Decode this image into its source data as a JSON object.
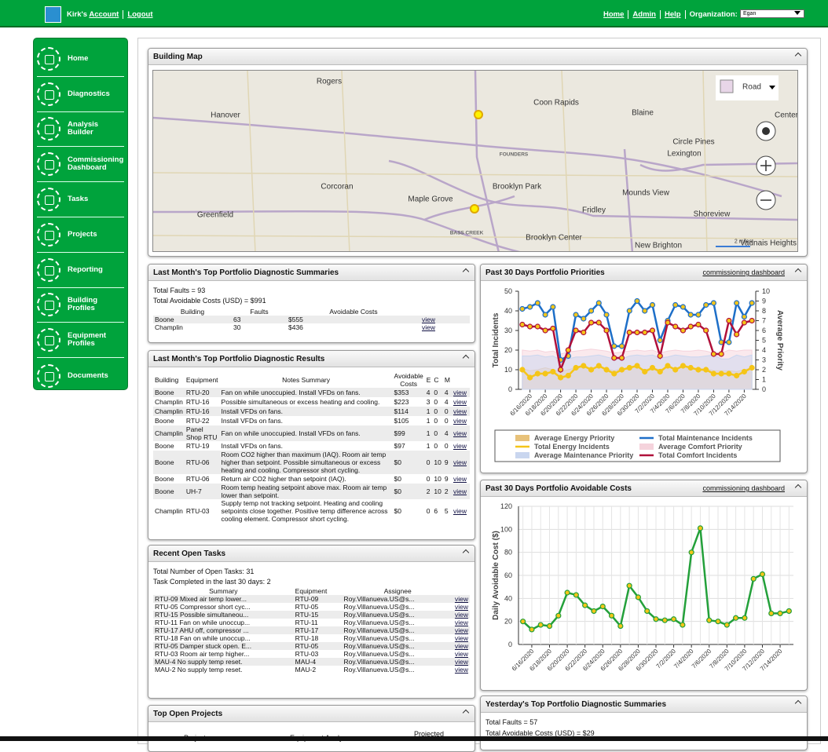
{
  "header": {
    "user": "Kirk's",
    "account": "Account",
    "logout": "Logout",
    "links": [
      "Home",
      "Admin",
      "Help"
    ],
    "org_label": "Organization:",
    "org": "Egan"
  },
  "sidebar": [
    "Home",
    "Diagnostics",
    "Analysis Builder",
    "Commissioning Dashboard",
    "Tasks",
    "Projects",
    "Reporting",
    "Building Profiles",
    "Equipment Profiles",
    "Documents"
  ],
  "map": {
    "title": "Building Map",
    "layer": "Road",
    "scale": "2 miles",
    "labels": [
      "Rogers",
      "Hanover",
      "Coon Rapids",
      "Blaine",
      "Center",
      "Circle Pines",
      "Lexington",
      "FOUNDERS",
      "Corcoran",
      "Maple Grove",
      "Brooklyn Park",
      "Mounds View",
      "Greenfield",
      "Fridley",
      "Shoreview",
      "BASS CREEK",
      "Brooklyn Center",
      "New Brighton",
      "Vadnais Heights"
    ]
  },
  "summaries": {
    "title": "Last Month's Top Portfolio Diagnostic Summaries",
    "faults": "Total Faults = 93",
    "costs": "Total Avoidable Costs (USD) = $991",
    "columns": [
      "Building",
      "Faults",
      "Avoidable Costs"
    ],
    "rows": [
      [
        "Boone",
        63,
        "$555",
        "view"
      ],
      [
        "Champlin",
        30,
        "$436",
        "view"
      ]
    ]
  },
  "results": {
    "title": "Last Month's Top Portfolio Diagnostic Results",
    "columns": [
      "Building",
      "Equipment",
      "Notes Summary",
      "Avoidable Costs",
      "E",
      "C",
      "M"
    ],
    "rows": [
      [
        "Boone",
        "RTU-20",
        "Fan on while unoccupied. Install VFDs on fans.",
        "$353",
        4,
        0,
        4,
        "view"
      ],
      [
        "Champlin",
        "RTU-16",
        "Possible simultaneous or excess heating and cooling.",
        "$223",
        3,
        0,
        4,
        "view"
      ],
      [
        "Champlin",
        "RTU-16",
        "Install VFDs on fans.",
        "$114",
        1,
        0,
        0,
        "view"
      ],
      [
        "Boone",
        "RTU-22",
        "Install VFDs on fans.",
        "$105",
        1,
        0,
        0,
        "view"
      ],
      [
        "Champlin",
        "Panel Shop RTU",
        "Fan on while unoccupied. Install VFDs on fans.",
        "$99",
        1,
        0,
        4,
        "view"
      ],
      [
        "Boone",
        "RTU-19",
        "Install VFDs on fans.",
        "$97",
        1,
        0,
        0,
        "view"
      ],
      [
        "Boone",
        "RTU-06",
        "Room CO2 higher than maximum (IAQ). Room air temp higher than setpoint. Possible simultaneous or excess heating and cooling. Compressor short cycling.",
        "$0",
        0,
        10,
        9,
        "view"
      ],
      [
        "Boone",
        "RTU-06",
        "Return air CO2 higher than setpoint (IAQ).",
        "$0",
        0,
        10,
        9,
        "view"
      ],
      [
        "Boone",
        "UH-7",
        "Room temp heating setpoint above max. Room air temp lower than setpoint.",
        "$0",
        2,
        10,
        2,
        "view"
      ],
      [
        "Champlin",
        "RTU-03",
        "Supply temp not tracking setpoint. Heating and cooling setpoints close together. Positive temp difference across cooling element. Compressor short cycling.",
        "$0",
        0,
        6,
        5,
        "view"
      ]
    ]
  },
  "tasks": {
    "title": "Recent Open Tasks",
    "open": "Total Number of Open Tasks: 31",
    "completed": "Task Completed in the last 30 days: 2",
    "columns": [
      "Summary",
      "Equipment",
      "Assignee"
    ],
    "rows": [
      [
        "RTU-09 Mixed air temp lower...",
        "RTU-09",
        "Roy.Villanueva.US@s...",
        "view"
      ],
      [
        "RTU-05 Compressor short cyc...",
        "RTU-05",
        "Roy.Villanueva.US@s...",
        "view"
      ],
      [
        "RTU-15 Possible simultaneou...",
        "RTU-15",
        "Roy.Villanueva.US@s...",
        "view"
      ],
      [
        "RTU-11 Fan on while unoccup...",
        "RTU-11",
        "Roy.Villanueva.US@s...",
        "view"
      ],
      [
        "RTU-17 AHU off, compressor ...",
        "RTU-17",
        "Roy.Villanueva.US@s...",
        "view"
      ],
      [
        "RTU-18 Fan on while unoccup...",
        "RTU-18",
        "Roy.Villanueva.US@s...",
        "view"
      ],
      [
        "RTU-05 Damper stuck open. E...",
        "RTU-05",
        "Roy.Villanueva.US@s...",
        "view"
      ],
      [
        "RTU-03 Room air temp higher...",
        "RTU-03",
        "Roy.Villanueva.US@s...",
        "view"
      ],
      [
        "MAU-4 No supply temp reset.",
        "MAU-4",
        "Roy.Villanueva.US@s...",
        "view"
      ],
      [
        "MAU-2 No supply temp reset.",
        "MAU-2",
        "Roy.Villanueva.US@s...",
        "view"
      ]
    ]
  },
  "projects": {
    "title": "Top Open Projects",
    "columns": [
      "Project",
      "Equipment Analyses",
      "Projected"
    ]
  },
  "yesterday": {
    "title": "Yesterday's Top Portfolio Diagnostic Summaries",
    "faults": "Total Faults = 57",
    "costs": "Total Avoidable Costs (USD) = $29"
  },
  "chart_data": [
    {
      "type": "line",
      "title": "Past 30 Days Portfolio Priorities",
      "link": "commissioning dashboard",
      "ylabel": "Total Incidents",
      "y2label": "Average Priority",
      "categories": [
        null,
        "6/16/2020",
        null,
        "6/18/2020",
        null,
        "6/20/2020",
        null,
        "6/22/2020",
        null,
        "6/24/2020",
        null,
        "6/26/2020",
        null,
        "6/28/2020",
        null,
        "6/30/2020",
        null,
        "7/2/2020",
        null,
        "7/4/2020",
        null,
        "7/6/2020",
        null,
        "7/8/2020",
        null,
        "7/10/2020",
        null,
        "7/12/2020",
        null,
        "7/14/2020",
        null
      ],
      "ylim": [
        0,
        50
      ],
      "yticks": [
        0,
        10,
        20,
        30,
        40,
        50
      ],
      "y2lim": [
        0,
        10
      ],
      "y2ticks": [
        0,
        1,
        2,
        3,
        4,
        5,
        6,
        7,
        8,
        9,
        10
      ],
      "grid": false,
      "series": [
        {
          "name": "Average Energy Priority",
          "kind": "area",
          "axis": "y2",
          "color": "#e8c27a",
          "values": [
            2.1,
            1.9,
            2.0,
            2.2,
            2.0,
            1.8,
            2.0,
            2.2,
            2.3,
            2.1,
            2.3,
            2.1,
            1.9,
            2.1,
            2.2,
            2.3,
            2.0,
            2.2,
            2.0,
            2.3,
            2.1,
            2.3,
            2.2,
            2.1,
            2.1,
            1.9,
            1.9,
            1.9,
            1.8,
            2.0,
            2.2
          ]
        },
        {
          "name": "Total Maintenance Incidents",
          "kind": "line",
          "color": "#1e6fc8",
          "values": [
            41,
            42,
            44,
            38,
            42,
            15,
            17,
            38,
            36,
            40,
            44,
            38,
            22,
            22,
            40,
            45,
            40,
            43,
            25,
            35,
            43,
            42,
            38,
            38,
            43,
            44,
            24,
            24,
            44,
            37,
            44
          ]
        },
        {
          "name": "Total Energy Incidents",
          "kind": "line",
          "color": "#f5c518",
          "values": [
            10,
            6,
            8,
            8,
            9,
            6,
            7,
            11,
            12,
            10,
            12,
            10,
            8,
            10,
            11,
            12,
            9,
            11,
            9,
            12,
            10,
            12,
            11,
            10,
            10,
            8,
            8,
            8,
            7,
            9,
            11
          ]
        },
        {
          "name": "Average Comfort Priority",
          "kind": "area",
          "axis": "y2",
          "color": "#f5d3dc",
          "values": [
            4.0,
            3.9,
            4.0,
            3.8,
            3.9,
            3.6,
            3.8,
            3.9,
            4.0,
            4.1,
            4.0,
            3.9,
            3.7,
            3.8,
            3.9,
            4.0,
            3.9,
            4.0,
            3.7,
            3.9,
            4.0,
            3.9,
            3.9,
            4.0,
            3.9,
            3.7,
            3.7,
            4.0,
            3.9,
            4.0,
            4.0
          ]
        },
        {
          "name": "Average Maintenance Priority",
          "kind": "area",
          "axis": "y2",
          "color": "#c9d6ef",
          "values": [
            3.4,
            3.4,
            3.5,
            3.3,
            3.4,
            3.0,
            3.1,
            3.3,
            3.3,
            3.4,
            3.5,
            3.3,
            3.1,
            3.1,
            3.4,
            3.5,
            3.4,
            3.5,
            3.2,
            3.3,
            3.5,
            3.4,
            3.3,
            3.3,
            3.4,
            3.5,
            3.1,
            3.1,
            3.5,
            3.3,
            3.5
          ]
        },
        {
          "name": "Total Comfort Incidents",
          "kind": "line",
          "color": "#b0103a",
          "values": [
            33,
            32,
            32,
            30,
            31,
            10,
            20,
            30,
            29,
            34,
            34,
            30,
            16,
            16,
            29,
            29,
            29,
            30,
            17,
            34,
            32,
            30,
            32,
            33,
            30,
            18,
            18,
            35,
            28,
            34,
            35
          ]
        }
      ]
    },
    {
      "type": "line",
      "title": "Past 30 Days Portfolio Avoidable Costs",
      "link": "commissioning dashboard",
      "ylabel": "Daily Avoidable Cost ($)",
      "categories": [
        null,
        "6/16/2020",
        null,
        "6/18/2020",
        null,
        "6/20/2020",
        null,
        "6/22/2020",
        null,
        "6/24/2020",
        null,
        "6/26/2020",
        null,
        "6/28/2020",
        null,
        "6/30/2020",
        null,
        "7/2/2020",
        null,
        "7/4/2020",
        null,
        "7/6/2020",
        null,
        "7/8/2020",
        null,
        "7/10/2020",
        null,
        "7/12/2020",
        null,
        "7/14/2020",
        null
      ],
      "ylim": [
        0,
        120
      ],
      "yticks": [
        0,
        20,
        40,
        60,
        80,
        100,
        120
      ],
      "grid": true,
      "series": [
        {
          "name": "Daily Avoidable Cost",
          "kind": "line",
          "color": "#23a03a",
          "values": [
            20,
            13,
            17,
            16,
            25,
            45,
            43,
            34,
            29,
            33,
            25,
            16,
            51,
            41,
            29,
            22,
            21,
            22,
            17,
            80,
            101,
            21,
            20,
            17,
            23,
            23,
            57,
            61,
            27,
            27,
            29
          ]
        }
      ]
    }
  ]
}
